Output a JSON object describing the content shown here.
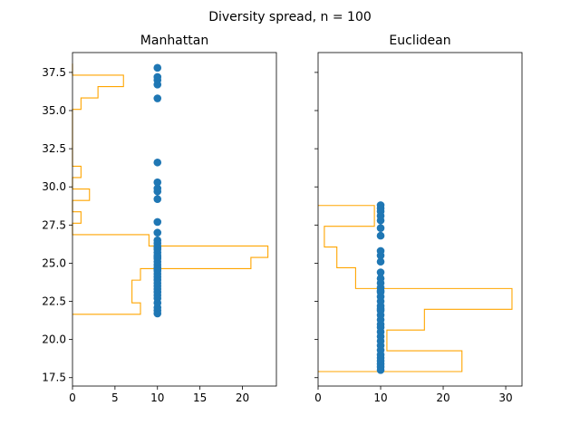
{
  "figure": {
    "suptitle": "Diversity spread, n = 100"
  },
  "colors": {
    "points": "#1f77b4",
    "histogram": "#ffa500",
    "axes": "#000000",
    "background": "#ffffff"
  },
  "chart_data": [
    {
      "type": "scatter",
      "title": "Manhattan",
      "xlabel": "",
      "ylabel": "",
      "xlim": [
        0,
        24
      ],
      "ylim": [
        16.95,
        38.8
      ],
      "xticks": [
        0,
        5,
        10,
        15,
        20
      ],
      "yticks": [
        17.5,
        20.0,
        22.5,
        25.0,
        27.5,
        30.0,
        32.5,
        35.0,
        37.5
      ],
      "ytick_labels": [
        "17.5",
        "20.0",
        "22.5",
        "25.0",
        "27.5",
        "30.0",
        "32.5",
        "35.0",
        "37.5"
      ],
      "grid": false,
      "points": {
        "x": [
          10,
          10,
          10,
          10,
          10,
          10,
          10,
          10,
          10,
          10,
          10,
          10,
          10,
          10,
          10,
          10,
          10,
          10,
          10,
          10,
          10,
          10,
          10,
          10,
          10,
          10,
          10,
          10,
          10,
          10,
          10,
          10,
          10,
          10,
          10,
          10,
          10,
          10,
          10
        ],
        "y": [
          21.7,
          21.9,
          22.1,
          22.4,
          22.7,
          22.9,
          23.1,
          23.3,
          23.5,
          23.7,
          23.9,
          24.1,
          24.3,
          24.5,
          24.7,
          24.9,
          25.1,
          25.3,
          25.5,
          25.7,
          25.9,
          26.1,
          26.3,
          26.5,
          27.0,
          27.7,
          29.2,
          29.7,
          29.9,
          30.3,
          31.6,
          35.8,
          36.7,
          37.0,
          37.2,
          37.8,
          24.6,
          25.4,
          26.0
        ]
      },
      "histogram": {
        "orientation": "horizontal",
        "histtype": "step",
        "bin_edges": [
          21.65,
          22.4,
          23.14,
          23.89,
          24.64,
          25.38,
          26.13,
          26.87,
          27.62,
          28.37,
          29.11,
          29.86,
          30.61,
          31.35,
          32.1,
          32.84,
          33.59,
          34.34,
          35.08,
          35.83,
          36.57,
          37.32,
          38.07
        ],
        "counts": [
          8,
          7,
          7,
          8,
          21,
          23,
          9,
          0,
          1,
          0,
          2,
          0,
          1,
          0,
          0,
          0,
          0,
          0,
          1,
          3,
          6,
          0
        ]
      }
    },
    {
      "type": "scatter",
      "title": "Euclidean",
      "xlabel": "",
      "ylabel": "",
      "xlim": [
        0,
        32.6
      ],
      "ylim": [
        16.95,
        38.8
      ],
      "xticks": [
        0,
        10,
        20,
        30
      ],
      "grid": false,
      "points": {
        "x": [
          10,
          10,
          10,
          10,
          10,
          10,
          10,
          10,
          10,
          10,
          10,
          10,
          10,
          10,
          10,
          10,
          10,
          10,
          10,
          10,
          10,
          10,
          10,
          10,
          10,
          10,
          10,
          10,
          10,
          10,
          10,
          10,
          10,
          10,
          10,
          10
        ],
        "y": [
          18.0,
          18.2,
          18.4,
          18.6,
          18.8,
          19.0,
          19.3,
          19.6,
          19.9,
          20.2,
          20.5,
          20.8,
          21.0,
          21.3,
          21.6,
          21.9,
          22.2,
          22.5,
          22.8,
          23.1,
          23.4,
          23.7,
          24.0,
          24.4,
          25.1,
          25.5,
          25.8,
          26.8,
          27.3,
          27.8,
          28.1,
          28.4,
          28.6,
          28.8,
          22.0,
          23.2
        ]
      },
      "histogram": {
        "orientation": "horizontal",
        "histtype": "step",
        "bin_edges": [
          17.9,
          19.26,
          20.62,
          21.98,
          23.34,
          24.7,
          26.06,
          27.42,
          28.78
        ],
        "counts": [
          23,
          11,
          17,
          31,
          6,
          3,
          1,
          9
        ]
      }
    }
  ]
}
